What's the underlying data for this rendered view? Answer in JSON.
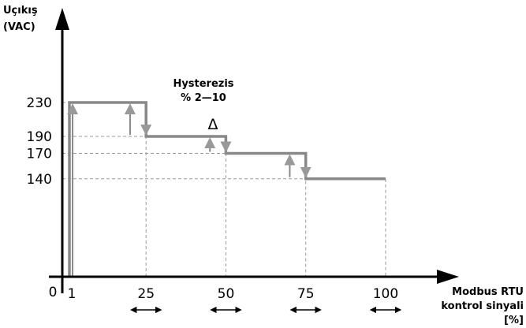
{
  "chart_data": {
    "type": "line",
    "y_title": [
      "Uçıkış",
      "(VAC)"
    ],
    "x_title": [
      "Modbus RTU",
      "kontrol sinyali",
      "[%]"
    ],
    "annotation": {
      "title": "Hysterezis",
      "range": "% 2—10",
      "symbol": "Δ"
    },
    "origin_label": "0",
    "x_ticks": [
      {
        "value": 1,
        "label": "1"
      },
      {
        "value": 25,
        "label": "25"
      },
      {
        "value": 50,
        "label": "50"
      },
      {
        "value": 75,
        "label": "75"
      },
      {
        "value": 100,
        "label": "100"
      }
    ],
    "y_ticks": [
      {
        "value": 140,
        "label": "140"
      },
      {
        "value": 170,
        "label": "170"
      },
      {
        "value": 190,
        "label": "190"
      },
      {
        "value": 230,
        "label": "230"
      }
    ],
    "series": [
      {
        "values": [
          {
            "x": 1,
            "y": 0
          },
          {
            "x": 1,
            "y": 230
          },
          {
            "x": 25,
            "y": 230
          },
          {
            "x": 25,
            "y": 190
          },
          {
            "x": 50,
            "y": 190
          },
          {
            "x": 50,
            "y": 170
          },
          {
            "x": 75,
            "y": 170
          },
          {
            "x": 75,
            "y": 140
          },
          {
            "x": 100,
            "y": 140
          }
        ]
      }
    ],
    "hysteresis_risers": [
      {
        "x": 2,
        "y_from": 0,
        "y_to": 230
      },
      {
        "x": 20,
        "y_from": 190,
        "y_to": 230
      },
      {
        "x": 45,
        "y_from": 170,
        "y_to": 190
      },
      {
        "x": 70,
        "y_from": 140,
        "y_to": 170
      }
    ],
    "colors": {
      "line": "#888888",
      "axis": "#000000",
      "grid": "#999999"
    }
  }
}
